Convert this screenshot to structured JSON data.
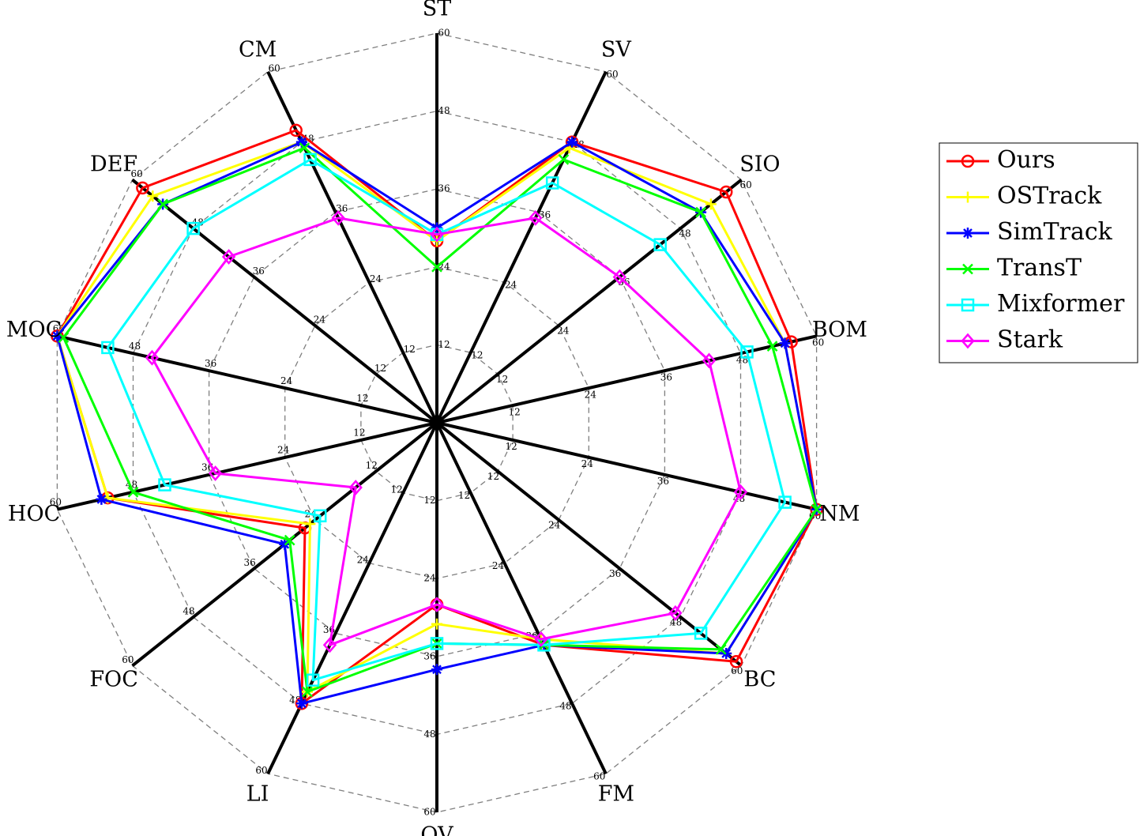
{
  "chart_data": {
    "type": "radar",
    "axes": [
      "ST",
      "SV",
      "SIO",
      "BOM",
      "NM",
      "BC",
      "FM",
      "OV",
      "LI",
      "FOC",
      "HOC",
      "MOC",
      "DEF",
      "CM"
    ],
    "rlim": [
      0,
      60
    ],
    "ticks": [
      12,
      24,
      36,
      48,
      60
    ],
    "tick_labels": [
      "12",
      "24",
      "36",
      "48",
      "60"
    ],
    "grid": true,
    "legend_position": "right",
    "series": [
      {
        "name": "Ours",
        "color": "#ff0000",
        "marker": "circle",
        "values": [
          28,
          48,
          57,
          56,
          60,
          59,
          38,
          28,
          48,
          26,
          52,
          60,
          58,
          50
        ]
      },
      {
        "name": "OSTrack",
        "color": "#ffff00",
        "marker": "plus",
        "values": [
          28,
          47,
          54,
          55,
          60,
          57,
          37,
          31,
          46,
          25,
          52,
          60,
          56,
          48
        ]
      },
      {
        "name": "SimTrack",
        "color": "#0000ff",
        "marker": "asterisk",
        "values": [
          30,
          48,
          52,
          55,
          60,
          57,
          38,
          38,
          48,
          30,
          53,
          60,
          54,
          48
        ]
      },
      {
        "name": "TransT",
        "color": "#00ff00",
        "marker": "x",
        "values": [
          24,
          45,
          52,
          53,
          60,
          56,
          38,
          34,
          46,
          29,
          48,
          59,
          54,
          47
        ]
      },
      {
        "name": "Mixformer",
        "color": "#00ffff",
        "marker": "square",
        "values": [
          29,
          41,
          44,
          49,
          55,
          52,
          38,
          34,
          44,
          23,
          43,
          52,
          48,
          45
        ]
      },
      {
        "name": "Stark",
        "color": "#ff00ff",
        "marker": "diamond",
        "values": [
          29,
          35,
          36,
          43,
          48,
          47,
          37,
          28,
          38,
          16,
          35,
          45,
          41,
          35
        ]
      }
    ]
  }
}
